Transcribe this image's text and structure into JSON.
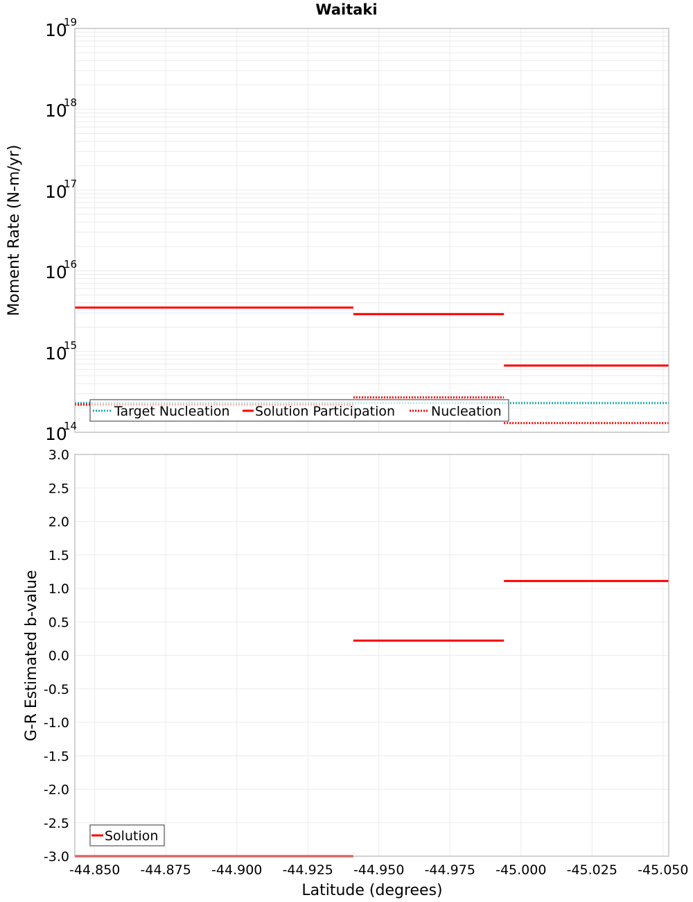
{
  "title": "Waitaki",
  "colors": {
    "solution": "#ff0000",
    "target": "#1aadad",
    "grid": "#ebebeb",
    "frame": "#b4b4b4"
  },
  "top_plot": {
    "ylabel": "Moment Rate (N-m/yr)",
    "yticks": [
      {
        "base": "10",
        "exp": "19"
      },
      {
        "base": "10",
        "exp": "18"
      },
      {
        "base": "10",
        "exp": "17"
      },
      {
        "base": "10",
        "exp": "16"
      },
      {
        "base": "10",
        "exp": "15"
      },
      {
        "base": "10",
        "exp": "14"
      }
    ],
    "legend": {
      "items": [
        {
          "label": "Target Nucleation",
          "style": "dotted",
          "color": "#1aadad"
        },
        {
          "label": "Solution Participation",
          "style": "solid",
          "color": "#ff0000"
        },
        {
          "label": "Nucleation",
          "style": "dotted",
          "color": "#ff0000"
        }
      ]
    }
  },
  "bottom_plot": {
    "ylabel": "G-R Estimated b-value",
    "yticks": [
      "3.0",
      "2.5",
      "2.0",
      "1.5",
      "1.0",
      "0.5",
      "0.0",
      "-0.5",
      "-1.0",
      "-1.5",
      "-2.0",
      "-2.5",
      "-3.0"
    ],
    "legend": {
      "items": [
        {
          "label": "Solution",
          "style": "solid",
          "color": "#ff0000"
        }
      ]
    }
  },
  "xaxis": {
    "label": "Latitude (degrees)",
    "ticks": [
      "-44.850",
      "-44.875",
      "-44.900",
      "-44.925",
      "-44.950",
      "-44.975",
      "-45.000",
      "-45.025",
      "-45.050"
    ]
  },
  "chart_data": [
    {
      "type": "line",
      "title": "Waitaki",
      "xlabel": "Latitude (degrees)",
      "ylabel": "Moment Rate (N-m/yr)",
      "yscale": "log",
      "ylim": [
        100000000000000.0,
        1e+19
      ],
      "xlim": [
        -44.843,
        -45.052
      ],
      "grid": true,
      "legend_position": "lower-left",
      "x_segments": [
        [
          -44.843,
          -44.941
        ],
        [
          -44.941,
          -44.994
        ],
        [
          -44.994,
          -45.052
        ]
      ],
      "series": [
        {
          "name": "Target Nucleation",
          "style": "dotted",
          "values": [
            230000000000000.0,
            230000000000000.0,
            230000000000000.0
          ]
        },
        {
          "name": "Solution Participation",
          "style": "solid",
          "values": [
            3500000000000000.0,
            2900000000000000.0,
            670000000000000.0
          ]
        },
        {
          "name": "Nucleation",
          "style": "dotted",
          "values": [
            220000000000000.0,
            270000000000000.0,
            130000000000000.0
          ]
        }
      ]
    },
    {
      "type": "line",
      "title": "",
      "xlabel": "Latitude (degrees)",
      "ylabel": "G-R Estimated b-value",
      "ylim": [
        -3.0,
        3.0
      ],
      "xlim": [
        -44.843,
        -45.052
      ],
      "grid": true,
      "legend_position": "lower-left",
      "x_segments": [
        [
          -44.843,
          -44.941
        ],
        [
          -44.941,
          -44.994
        ],
        [
          -44.994,
          -45.052
        ]
      ],
      "series": [
        {
          "name": "Solution",
          "style": "solid",
          "values": [
            -3.0,
            0.22,
            1.11
          ]
        }
      ]
    }
  ]
}
